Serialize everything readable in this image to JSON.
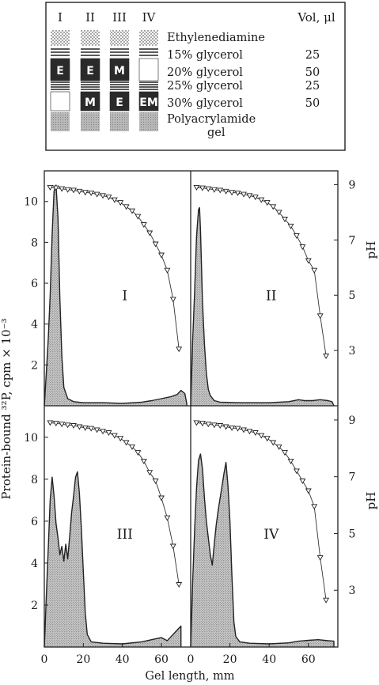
{
  "legend_box": {
    "column_headers": [
      "I",
      "II",
      "III",
      "IV"
    ],
    "vol_header": "Vol, μl",
    "layers": [
      {
        "label": "Ethylenediamine",
        "vol": ""
      },
      {
        "label": "15% glycerol",
        "vol": "25"
      },
      {
        "label": "20% glycerol",
        "vol": "50"
      },
      {
        "label": "25% glycerol",
        "vol": "25"
      },
      {
        "label": "30% glycerol",
        "vol": "50"
      },
      {
        "label": "Polyacrylamide",
        "vol": ""
      },
      {
        "label": "gel",
        "vol": ""
      }
    ],
    "tube_marks": {
      "I": {
        "layer_20": "E",
        "layer_30": ""
      },
      "II": {
        "layer_20": "E",
        "layer_30": "M"
      },
      "III": {
        "layer_20": "M",
        "layer_30": "E"
      },
      "IV": {
        "layer_20": "",
        "layer_30": "EM"
      }
    }
  },
  "chart_data": {
    "type": "area",
    "xlabel": "Gel length, mm",
    "ylabel_left": "Protein-bound ³²P, cpm × 10⁻³",
    "ylabel_right": "pH",
    "xlim": [
      0,
      75
    ],
    "ylim_left": [
      0,
      11.5
    ],
    "ylim_right": [
      1,
      9.5
    ],
    "left_ticks": [
      "2",
      "4",
      "6",
      "8",
      "10"
    ],
    "right_ticks": [
      "3",
      "5",
      "7",
      "9"
    ],
    "x_ticks": [
      "0",
      "20",
      "40",
      "60"
    ],
    "x_ticks_right_panel": [
      "0",
      "20",
      "40",
      "60"
    ],
    "panels": [
      {
        "id": "I",
        "counts": [
          [
            0,
            0
          ],
          [
            1,
            1.6
          ],
          [
            2,
            3.2
          ],
          [
            3,
            5.4
          ],
          [
            4,
            8.4
          ],
          [
            5,
            10.5
          ],
          [
            6,
            10.8
          ],
          [
            7,
            9.2
          ],
          [
            8,
            5.2
          ],
          [
            9,
            2.4
          ],
          [
            10,
            0.9
          ],
          [
            12,
            0.35
          ],
          [
            15,
            0.2
          ],
          [
            20,
            0.15
          ],
          [
            30,
            0.15
          ],
          [
            40,
            0.12
          ],
          [
            50,
            0.18
          ],
          [
            55,
            0.25
          ],
          [
            60,
            0.35
          ],
          [
            65,
            0.45
          ],
          [
            68,
            0.55
          ],
          [
            70,
            0.75
          ],
          [
            72,
            0.6
          ],
          [
            73,
            0.1
          ],
          [
            73,
            0
          ]
        ],
        "pH": [
          [
            3,
            8.9
          ],
          [
            6,
            8.88
          ],
          [
            9,
            8.85
          ],
          [
            12,
            8.82
          ],
          [
            15,
            8.8
          ],
          [
            18,
            8.76
          ],
          [
            21,
            8.72
          ],
          [
            24,
            8.7
          ],
          [
            27,
            8.65
          ],
          [
            30,
            8.6
          ],
          [
            33,
            8.55
          ],
          [
            36,
            8.45
          ],
          [
            39,
            8.35
          ],
          [
            42,
            8.2
          ],
          [
            45,
            8.05
          ],
          [
            48,
            7.85
          ],
          [
            51,
            7.55
          ],
          [
            54,
            7.25
          ],
          [
            57,
            6.85
          ],
          [
            60,
            6.45
          ],
          [
            63,
            5.9
          ],
          [
            66,
            4.85
          ],
          [
            69,
            3.05
          ]
        ]
      },
      {
        "id": "II",
        "counts": [
          [
            0,
            0
          ],
          [
            1,
            3.2
          ],
          [
            2,
            5.6
          ],
          [
            3,
            8.3
          ],
          [
            4,
            9.6
          ],
          [
            4.5,
            9.7
          ],
          [
            5,
            8.6
          ],
          [
            6,
            5.1
          ],
          [
            7,
            3.0
          ],
          [
            8,
            1.6
          ],
          [
            9,
            0.8
          ],
          [
            10,
            0.5
          ],
          [
            12,
            0.25
          ],
          [
            15,
            0.18
          ],
          [
            25,
            0.15
          ],
          [
            40,
            0.15
          ],
          [
            50,
            0.2
          ],
          [
            55,
            0.3
          ],
          [
            58,
            0.25
          ],
          [
            62,
            0.25
          ],
          [
            66,
            0.3
          ],
          [
            70,
            0.25
          ],
          [
            72,
            0.2
          ],
          [
            73,
            0
          ]
        ],
        "pH": [
          [
            3,
            8.9
          ],
          [
            6,
            8.88
          ],
          [
            9,
            8.85
          ],
          [
            12,
            8.82
          ],
          [
            15,
            8.8
          ],
          [
            18,
            8.76
          ],
          [
            21,
            8.72
          ],
          [
            24,
            8.7
          ],
          [
            27,
            8.65
          ],
          [
            30,
            8.6
          ],
          [
            33,
            8.55
          ],
          [
            36,
            8.45
          ],
          [
            39,
            8.35
          ],
          [
            42,
            8.2
          ],
          [
            45,
            8.0
          ],
          [
            48,
            7.75
          ],
          [
            51,
            7.5
          ],
          [
            54,
            7.15
          ],
          [
            57,
            6.75
          ],
          [
            60,
            6.25
          ],
          [
            63,
            5.9
          ],
          [
            66,
            4.25
          ],
          [
            69,
            2.8
          ]
        ]
      },
      {
        "id": "III",
        "counts": [
          [
            0,
            0
          ],
          [
            0.5,
            1.1
          ],
          [
            1,
            2.4
          ],
          [
            2,
            4.6
          ],
          [
            3,
            7.0
          ],
          [
            4,
            8.1
          ],
          [
            5,
            7.2
          ],
          [
            6,
            5.9
          ],
          [
            7,
            5.2
          ],
          [
            8,
            4.4
          ],
          [
            9,
            4.8
          ],
          [
            10,
            4.1
          ],
          [
            11,
            4.9
          ],
          [
            12,
            4.2
          ],
          [
            13,
            5.3
          ],
          [
            14,
            6.4
          ],
          [
            15,
            7.2
          ],
          [
            16,
            8.1
          ],
          [
            17,
            8.35
          ],
          [
            18,
            7.3
          ],
          [
            19,
            5.6
          ],
          [
            20,
            3.6
          ],
          [
            21,
            1.6
          ],
          [
            22,
            0.6
          ],
          [
            24,
            0.25
          ],
          [
            30,
            0.18
          ],
          [
            40,
            0.15
          ],
          [
            50,
            0.25
          ],
          [
            55,
            0.35
          ],
          [
            60,
            0.45
          ],
          [
            63,
            0.3
          ],
          [
            65,
            0.5
          ],
          [
            67,
            0.7
          ],
          [
            69,
            0.9
          ],
          [
            70,
            1.0
          ],
          [
            70,
            0
          ]
        ],
        "pH": [
          [
            3,
            8.9
          ],
          [
            6,
            8.88
          ],
          [
            9,
            8.85
          ],
          [
            12,
            8.82
          ],
          [
            15,
            8.8
          ],
          [
            18,
            8.76
          ],
          [
            21,
            8.72
          ],
          [
            24,
            8.7
          ],
          [
            27,
            8.65
          ],
          [
            30,
            8.6
          ],
          [
            33,
            8.55
          ],
          [
            36,
            8.45
          ],
          [
            39,
            8.35
          ],
          [
            42,
            8.2
          ],
          [
            45,
            8.05
          ],
          [
            48,
            7.85
          ],
          [
            51,
            7.55
          ],
          [
            54,
            7.15
          ],
          [
            57,
            6.85
          ],
          [
            60,
            6.25
          ],
          [
            63,
            5.55
          ],
          [
            66,
            4.55
          ],
          [
            69,
            3.2
          ]
        ]
      },
      {
        "id": "IV",
        "counts": [
          [
            0,
            0
          ],
          [
            1,
            3.1
          ],
          [
            2,
            5.6
          ],
          [
            3,
            7.6
          ],
          [
            4,
            8.9
          ],
          [
            5,
            9.2
          ],
          [
            6,
            8.5
          ],
          [
            7,
            7.1
          ],
          [
            8,
            6.0
          ],
          [
            9,
            5.2
          ],
          [
            10,
            4.4
          ],
          [
            11,
            3.9
          ],
          [
            12,
            4.9
          ],
          [
            13,
            5.8
          ],
          [
            14,
            6.5
          ],
          [
            15,
            7.1
          ],
          [
            16,
            7.7
          ],
          [
            17,
            8.3
          ],
          [
            18,
            8.8
          ],
          [
            19,
            7.7
          ],
          [
            20,
            6.0
          ],
          [
            21,
            3.4
          ],
          [
            22,
            1.2
          ],
          [
            23,
            0.5
          ],
          [
            25,
            0.25
          ],
          [
            30,
            0.18
          ],
          [
            40,
            0.15
          ],
          [
            50,
            0.2
          ],
          [
            55,
            0.28
          ],
          [
            60,
            0.32
          ],
          [
            65,
            0.35
          ],
          [
            70,
            0.3
          ],
          [
            73,
            0.28
          ],
          [
            73,
            0
          ]
        ],
        "pH": [
          [
            3,
            8.9
          ],
          [
            6,
            8.88
          ],
          [
            9,
            8.85
          ],
          [
            12,
            8.82
          ],
          [
            15,
            8.8
          ],
          [
            18,
            8.76
          ],
          [
            21,
            8.72
          ],
          [
            24,
            8.7
          ],
          [
            27,
            8.65
          ],
          [
            30,
            8.6
          ],
          [
            33,
            8.55
          ],
          [
            36,
            8.45
          ],
          [
            39,
            8.35
          ],
          [
            42,
            8.2
          ],
          [
            45,
            8.05
          ],
          [
            48,
            7.85
          ],
          [
            51,
            7.55
          ],
          [
            54,
            7.2
          ],
          [
            57,
            6.85
          ],
          [
            60,
            6.5
          ],
          [
            63,
            5.95
          ],
          [
            66,
            4.15
          ],
          [
            69,
            2.65
          ]
        ]
      }
    ]
  }
}
